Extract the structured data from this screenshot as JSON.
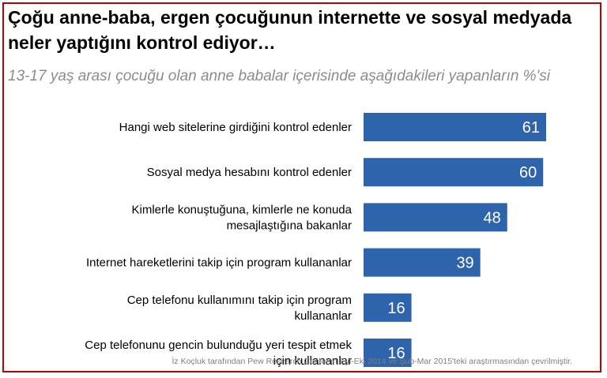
{
  "title": "Çoğu anne-baba, ergen çocuğunun internette ve sosyal medyada neler yaptığını kontrol ediyor…",
  "subtitle": "13-17 yaş arası çocuğu olan anne babalar içerisinde aşağıdakileri yapanların %'si",
  "source": "İz Koçluk tarafından Pew Research Center'ın Eyl-Eki 2014 ve Şub-Mar 2015'teki araştırmasından çevrilmiştir.",
  "colors": {
    "bar": "#2e64ac",
    "bar_label": "#ffffff",
    "frame": "#c00000"
  },
  "chart_data": {
    "type": "bar",
    "orientation": "horizontal",
    "categories": [
      [
        "Hangi web sitelerine girdiğini kontrol edenler"
      ],
      [
        "Sosyal medya hesabını kontrol edenler"
      ],
      [
        "Kimlerle konuştuğuna, kimlerle ne konuda",
        "mesajlaştığına bakanlar"
      ],
      [
        "Internet hareketlerini  takip için program kullananlar"
      ],
      [
        "Cep telefonu kullanımını takip için program",
        "kullananlar"
      ],
      [
        "Cep telefonunu gencin bulunduğu yeri tespit etmek",
        "için kullananlar"
      ]
    ],
    "values": [
      61,
      60,
      48,
      39,
      16,
      16
    ],
    "xlim": [
      0,
      61
    ],
    "grid": false,
    "legend": "none"
  }
}
